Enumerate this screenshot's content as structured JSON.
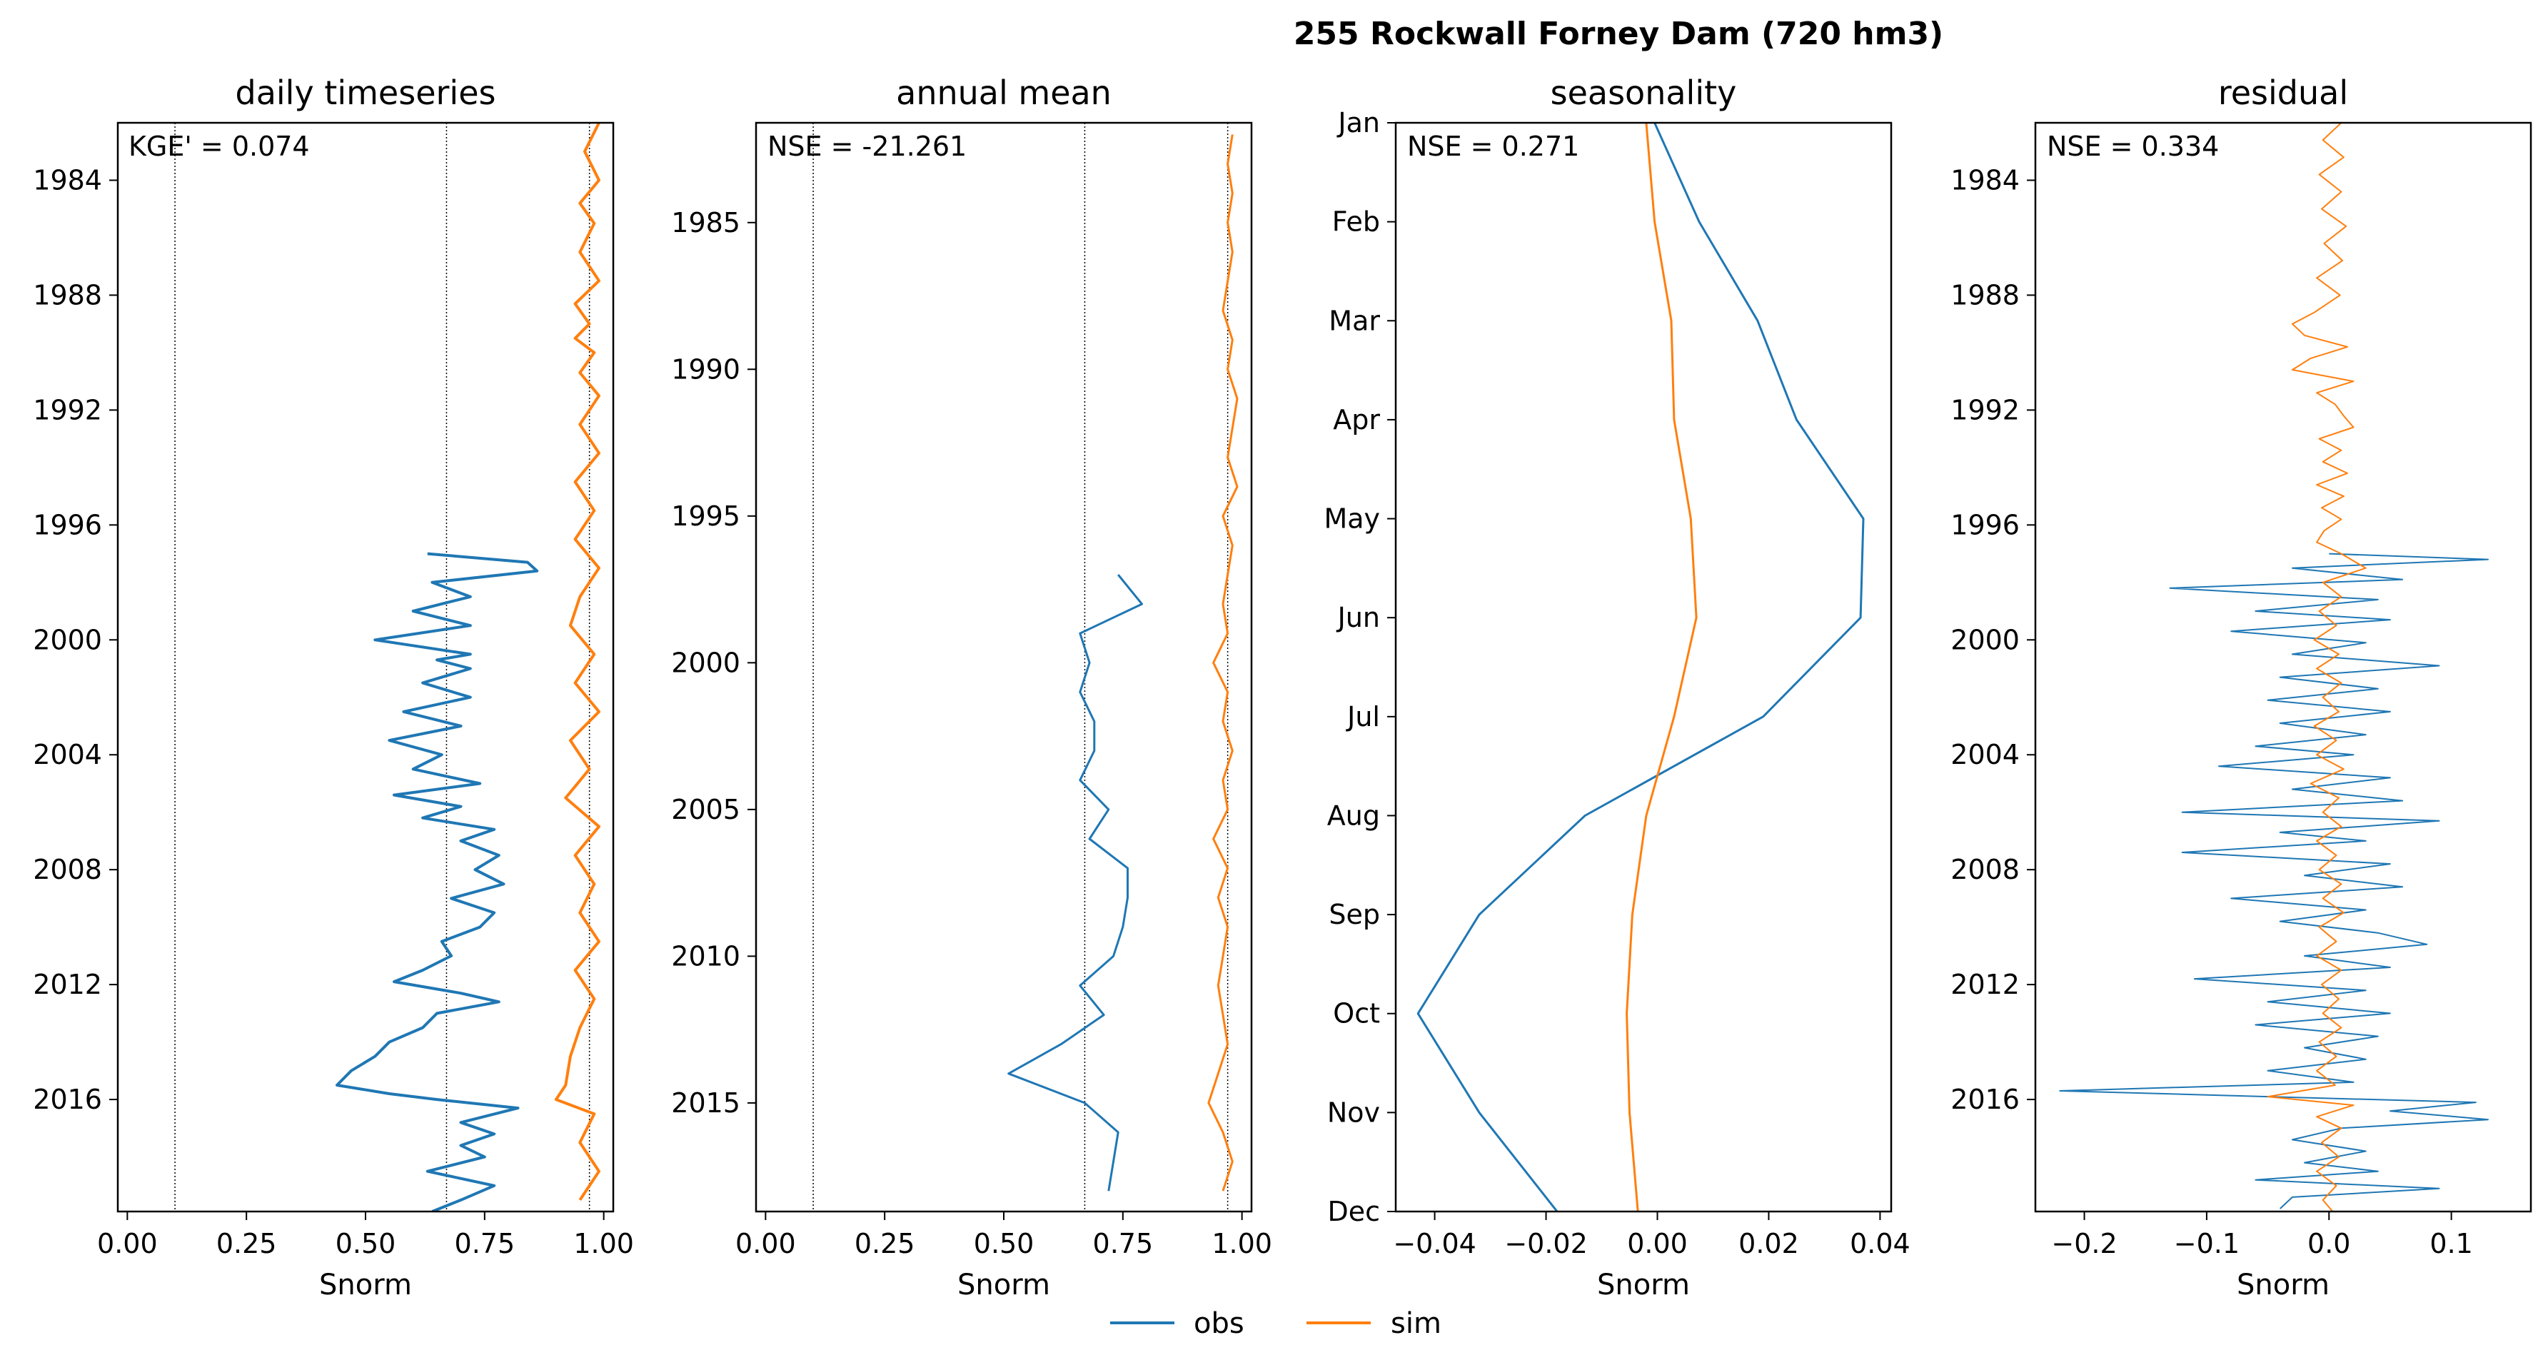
{
  "figure": {
    "suptitle": "255  Rockwall Forney Dam (720 hm3)",
    "legend": [
      {
        "label": "obs",
        "color": "#1f77b4"
      },
      {
        "label": "sim",
        "color": "#ff7f0e"
      }
    ]
  },
  "chart_data": [
    {
      "type": "line",
      "title": "daily timeseries",
      "xlabel": "Snorm",
      "ylabel": "",
      "metric": "KGE' = 0.074",
      "orientation": "vertical-time",
      "xlim": [
        -0.02,
        1.02
      ],
      "ylim": [
        1982.0,
        2019.9
      ],
      "y_reversed": true,
      "xticks": [
        "0.00",
        "0.25",
        "0.50",
        "0.75",
        "1.00"
      ],
      "xtick_values": [
        0.0,
        0.25,
        0.5,
        0.75,
        1.0
      ],
      "yticks": [
        "1984",
        "1988",
        "1992",
        "1996",
        "2000",
        "2004",
        "2008",
        "2012",
        "2016"
      ],
      "ytick_values": [
        1984,
        1988,
        1992,
        1996,
        2000,
        2004,
        2008,
        2012,
        2016
      ],
      "vlines": [
        0.1,
        0.67,
        0.97
      ],
      "series": [
        {
          "name": "obs",
          "color": "#1f77b4",
          "width": 4,
          "y": [
            1997.0,
            1997.3,
            1997.6,
            1998.0,
            1998.5,
            1999.0,
            1999.5,
            2000.0,
            2000.5,
            2000.7,
            2001.0,
            2001.5,
            2002.0,
            2002.5,
            2003.0,
            2003.5,
            2004.0,
            2004.5,
            2005.0,
            2005.4,
            2005.8,
            2006.2,
            2006.6,
            2007.0,
            2007.5,
            2008.0,
            2008.5,
            2009.0,
            2009.5,
            2010.0,
            2010.5,
            2011.0,
            2011.5,
            2011.9,
            2012.3,
            2012.6,
            2013.0,
            2013.5,
            2014.0,
            2014.5,
            2015.0,
            2015.5,
            2015.8,
            2016.0,
            2016.3,
            2016.8,
            2017.2,
            2017.6,
            2018.0,
            2018.5,
            2019.0,
            2019.5,
            2019.9
          ],
          "x": [
            0.63,
            0.84,
            0.86,
            0.64,
            0.72,
            0.6,
            0.72,
            0.52,
            0.72,
            0.65,
            0.72,
            0.62,
            0.72,
            0.58,
            0.7,
            0.55,
            0.66,
            0.6,
            0.74,
            0.56,
            0.7,
            0.62,
            0.77,
            0.7,
            0.78,
            0.73,
            0.79,
            0.68,
            0.77,
            0.74,
            0.66,
            0.68,
            0.62,
            0.56,
            0.7,
            0.78,
            0.65,
            0.62,
            0.55,
            0.52,
            0.47,
            0.44,
            0.55,
            0.65,
            0.82,
            0.7,
            0.77,
            0.7,
            0.75,
            0.63,
            0.77,
            0.7,
            0.64
          ]
        },
        {
          "name": "sim",
          "color": "#ff7f0e",
          "width": 4,
          "y": [
            1982.0,
            1983.0,
            1984.0,
            1984.8,
            1985.5,
            1986.5,
            1987.5,
            1988.3,
            1989.0,
            1989.5,
            1990.0,
            1990.7,
            1991.5,
            1992.5,
            1993.5,
            1994.5,
            1995.5,
            1996.5,
            1997.5,
            1998.5,
            1999.5,
            2000.5,
            2001.5,
            2002.5,
            2003.5,
            2004.5,
            2005.5,
            2006.5,
            2007.5,
            2008.5,
            2009.5,
            2010.5,
            2011.5,
            2012.5,
            2013.5,
            2014.5,
            2015.5,
            2016.0,
            2016.5,
            2017.5,
            2018.5,
            2019.5
          ],
          "x": [
            0.99,
            0.96,
            0.99,
            0.95,
            0.98,
            0.95,
            0.99,
            0.94,
            0.97,
            0.94,
            0.98,
            0.95,
            0.99,
            0.95,
            0.99,
            0.94,
            0.98,
            0.94,
            0.99,
            0.95,
            0.93,
            0.98,
            0.94,
            0.99,
            0.93,
            0.97,
            0.92,
            0.99,
            0.94,
            0.98,
            0.95,
            0.99,
            0.94,
            0.98,
            0.95,
            0.93,
            0.92,
            0.9,
            0.98,
            0.95,
            0.99,
            0.95
          ]
        }
      ]
    },
    {
      "type": "line",
      "title": "annual mean",
      "xlabel": "Snorm",
      "ylabel": "",
      "metric": "NSE = -21.261",
      "orientation": "vertical-time",
      "xlim": [
        -0.02,
        1.02
      ],
      "ylim": [
        1981.6,
        2018.7
      ],
      "y_reversed": true,
      "xticks": [
        "0.00",
        "0.25",
        "0.50",
        "0.75",
        "1.00"
      ],
      "xtick_values": [
        0.0,
        0.25,
        0.5,
        0.75,
        1.0
      ],
      "yticks": [
        "1985",
        "1990",
        "1995",
        "2000",
        "2005",
        "2010",
        "2015"
      ],
      "ytick_values": [
        1985,
        1990,
        1995,
        2000,
        2005,
        2010,
        2015
      ],
      "vlines": [
        0.1,
        0.67,
        0.97
      ],
      "series": [
        {
          "name": "obs",
          "color": "#1f77b4",
          "width": 3,
          "y": [
            1997,
            1998,
            1999,
            2000,
            2001,
            2002,
            2003,
            2004,
            2005,
            2006,
            2007,
            2008,
            2009,
            2010,
            2011,
            2012,
            2013,
            2014,
            2015,
            2016,
            2017,
            2018
          ],
          "x": [
            0.74,
            0.79,
            0.66,
            0.68,
            0.66,
            0.69,
            0.69,
            0.66,
            0.72,
            0.68,
            0.76,
            0.76,
            0.75,
            0.73,
            0.66,
            0.71,
            0.62,
            0.51,
            0.67,
            0.74,
            0.73,
            0.72
          ]
        },
        {
          "name": "sim",
          "color": "#ff7f0e",
          "width": 3,
          "y": [
            1982,
            1983,
            1984,
            1985,
            1986,
            1987,
            1988,
            1989,
            1990,
            1991,
            1992,
            1993,
            1994,
            1995,
            1996,
            1997,
            1998,
            1999,
            2000,
            2001,
            2002,
            2003,
            2004,
            2005,
            2006,
            2007,
            2008,
            2009,
            2010,
            2011,
            2012,
            2013,
            2014,
            2015,
            2016,
            2017,
            2018
          ],
          "x": [
            0.98,
            0.97,
            0.98,
            0.97,
            0.98,
            0.97,
            0.96,
            0.98,
            0.97,
            0.99,
            0.98,
            0.97,
            0.99,
            0.96,
            0.98,
            0.97,
            0.96,
            0.97,
            0.94,
            0.97,
            0.96,
            0.98,
            0.96,
            0.97,
            0.94,
            0.97,
            0.95,
            0.97,
            0.96,
            0.95,
            0.96,
            0.97,
            0.95,
            0.93,
            0.96,
            0.98,
            0.96
          ]
        }
      ]
    },
    {
      "type": "line",
      "title": "seasonality",
      "xlabel": "Snorm",
      "ylabel": "",
      "metric": "NSE = 0.271",
      "orientation": "vertical-month",
      "xlim": [
        -0.047,
        0.042
      ],
      "ylim": [
        0,
        11
      ],
      "y_reversed": true,
      "xticks": [
        "−0.04",
        "−0.02",
        "0.00",
        "0.02",
        "0.04"
      ],
      "xtick_values": [
        -0.04,
        -0.02,
        0.0,
        0.02,
        0.04
      ],
      "yticks": [
        "Jan",
        "Feb",
        "Mar",
        "Apr",
        "May",
        "Jun",
        "Jul",
        "Aug",
        "Sep",
        "Oct",
        "Nov",
        "Dec"
      ],
      "ytick_values": [
        0,
        1,
        2,
        3,
        4,
        5,
        6,
        7,
        8,
        9,
        10,
        11
      ],
      "vlines": [],
      "series": [
        {
          "name": "obs",
          "color": "#1f77b4",
          "width": 3,
          "y": [
            0,
            1,
            2,
            3,
            4,
            5,
            6,
            7,
            8,
            9,
            10,
            11
          ],
          "x": [
            -0.0005,
            0.0075,
            0.018,
            0.025,
            0.037,
            0.0365,
            0.019,
            -0.013,
            -0.032,
            -0.043,
            -0.032,
            -0.018
          ]
        },
        {
          "name": "sim",
          "color": "#ff7f0e",
          "width": 3,
          "y": [
            0,
            1,
            2,
            3,
            4,
            5,
            6,
            7,
            8,
            9,
            10,
            11
          ],
          "x": [
            -0.002,
            -0.0005,
            0.0025,
            0.003,
            0.006,
            0.007,
            0.003,
            -0.002,
            -0.0045,
            -0.0055,
            -0.005,
            -0.0035
          ]
        }
      ]
    },
    {
      "type": "line",
      "title": "residual",
      "xlabel": "Snorm",
      "ylabel": "",
      "metric": "NSE = 0.334",
      "orientation": "vertical-time",
      "xlim": [
        -0.24,
        0.165
      ],
      "ylim": [
        1982.0,
        2019.9
      ],
      "y_reversed": true,
      "xticks": [
        "−0.2",
        "−0.1",
        "0.0",
        "0.1"
      ],
      "xtick_values": [
        -0.2,
        -0.1,
        0.0,
        0.1
      ],
      "yticks": [
        "1984",
        "1988",
        "1992",
        "1996",
        "2000",
        "2004",
        "2008",
        "2012",
        "2016"
      ],
      "ytick_values": [
        1984,
        1988,
        1992,
        1996,
        2000,
        2004,
        2008,
        2012,
        2016
      ],
      "vlines": [],
      "series": [
        {
          "name": "obs",
          "color": "#1f77b4",
          "width": 2,
          "y": [
            1997.0,
            1997.2,
            1997.5,
            1997.9,
            1998.2,
            1998.6,
            1999.0,
            1999.3,
            1999.7,
            2000.1,
            2000.5,
            2000.9,
            2001.3,
            2001.7,
            2002.1,
            2002.5,
            2002.9,
            2003.3,
            2003.7,
            2004.0,
            2004.4,
            2004.8,
            2005.2,
            2005.6,
            2006.0,
            2006.3,
            2006.7,
            2007.0,
            2007.4,
            2007.8,
            2008.2,
            2008.6,
            2009.0,
            2009.4,
            2009.8,
            2010.2,
            2010.6,
            2011.0,
            2011.4,
            2011.8,
            2012.2,
            2012.6,
            2013.0,
            2013.4,
            2013.8,
            2014.2,
            2014.6,
            2015.0,
            2015.4,
            2015.7,
            2015.9,
            2016.1,
            2016.4,
            2016.7,
            2017.0,
            2017.4,
            2017.8,
            2018.2,
            2018.5,
            2018.8,
            2019.1,
            2019.4,
            2019.8
          ],
          "x": [
            0.0,
            0.13,
            -0.03,
            0.06,
            -0.13,
            0.04,
            -0.06,
            0.05,
            -0.08,
            0.03,
            -0.03,
            0.09,
            -0.04,
            0.04,
            -0.05,
            0.05,
            -0.04,
            0.03,
            -0.06,
            0.02,
            -0.09,
            0.05,
            -0.03,
            0.06,
            -0.12,
            0.09,
            -0.04,
            0.03,
            -0.12,
            0.05,
            -0.02,
            0.06,
            -0.08,
            0.03,
            -0.04,
            0.04,
            0.08,
            -0.02,
            0.05,
            -0.11,
            0.03,
            -0.05,
            0.05,
            -0.06,
            0.04,
            -0.02,
            0.03,
            -0.05,
            0.02,
            -0.22,
            -0.05,
            0.12,
            0.05,
            0.13,
            0.01,
            -0.03,
            0.03,
            -0.02,
            0.04,
            -0.06,
            0.09,
            -0.03,
            -0.04
          ]
        },
        {
          "name": "sim",
          "color": "#ff7f0e",
          "width": 2,
          "y": [
            1982.0,
            1982.6,
            1983.2,
            1983.8,
            1984.4,
            1985.0,
            1985.6,
            1986.2,
            1986.8,
            1987.4,
            1988.0,
            1988.6,
            1989.0,
            1989.4,
            1989.8,
            1990.2,
            1990.6,
            1991.0,
            1991.4,
            1991.8,
            1992.2,
            1992.6,
            1993.0,
            1993.4,
            1993.8,
            1994.2,
            1994.6,
            1995.0,
            1995.4,
            1995.8,
            1996.2,
            1996.6,
            1997.0,
            1997.5,
            1998.0,
            1998.5,
            1999.0,
            1999.5,
            2000.0,
            2000.5,
            2001.0,
            2001.5,
            2002.0,
            2002.5,
            2003.0,
            2003.5,
            2004.0,
            2004.5,
            2005.0,
            2005.5,
            2006.0,
            2006.5,
            2007.0,
            2007.5,
            2008.0,
            2008.5,
            2009.0,
            2009.5,
            2010.0,
            2010.5,
            2011.0,
            2011.5,
            2012.0,
            2012.5,
            2013.0,
            2013.5,
            2014.0,
            2014.5,
            2015.0,
            2015.5,
            2015.9,
            2016.2,
            2016.6,
            2017.0,
            2017.5,
            2018.0,
            2018.5,
            2019.0,
            2019.5,
            2019.9
          ],
          "x": [
            0.01,
            -0.005,
            0.012,
            -0.008,
            0.01,
            -0.006,
            0.014,
            -0.004,
            0.011,
            -0.01,
            0.009,
            -0.012,
            -0.03,
            -0.02,
            0.015,
            -0.015,
            -0.03,
            0.02,
            -0.01,
            0.005,
            0.012,
            0.02,
            -0.008,
            0.01,
            -0.005,
            0.015,
            -0.01,
            0.012,
            -0.006,
            0.01,
            -0.004,
            -0.01,
            0.01,
            0.03,
            -0.005,
            0.01,
            -0.008,
            0.006,
            -0.012,
            0.008,
            -0.01,
            0.01,
            -0.005,
            0.008,
            -0.012,
            0.006,
            -0.01,
            0.012,
            -0.015,
            0.008,
            -0.005,
            0.01,
            -0.01,
            0.006,
            -0.008,
            0.01,
            -0.005,
            0.012,
            -0.008,
            0.006,
            -0.01,
            0.01,
            -0.006,
            0.008,
            -0.005,
            0.01,
            -0.008,
            0.006,
            -0.01,
            0.005,
            -0.05,
            0.02,
            -0.01,
            0.01,
            -0.006,
            0.008,
            -0.01,
            0.006,
            -0.005,
            0.003
          ]
        }
      ]
    }
  ]
}
